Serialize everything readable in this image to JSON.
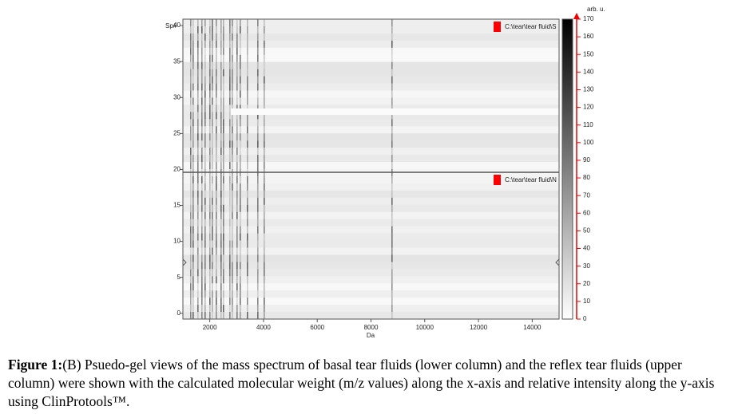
{
  "chart_data": {
    "type": "gel",
    "x_label": "Da",
    "y_label": "Sp#",
    "colorbar_label": "arb. u.",
    "xlim": [
      1000,
      15000
    ],
    "xticks": [
      2000,
      4000,
      6000,
      8000,
      10000,
      12000,
      14000
    ],
    "ylim": [
      -0.8,
      40.9
    ],
    "yticks": [
      0,
      5,
      10,
      15,
      20,
      25,
      30,
      35,
      40
    ],
    "colorbar_lim": [
      0,
      170
    ],
    "colorbar_ticks": [
      0,
      10,
      20,
      30,
      40,
      50,
      60,
      70,
      80,
      90,
      100,
      110,
      120,
      130,
      140,
      150,
      160,
      170
    ],
    "series": [
      {
        "name": "C:\\tear\\tear fluid\\S",
        "color": "#ff0000"
      },
      {
        "name": "C:\\tear\\tear fluid\\N",
        "color": "#ff0000"
      }
    ]
  },
  "caption": {
    "label": "Figure 1:",
    "text": "(B) Psuedo-gel views of the mass spectrum of basal tear fluids (lower column) and the reflex tear fluids (upper column) were shown with the calculated molecular weight (m/z values) along the x-axis and relative intensity along the y-axis using ClinProtools™."
  }
}
